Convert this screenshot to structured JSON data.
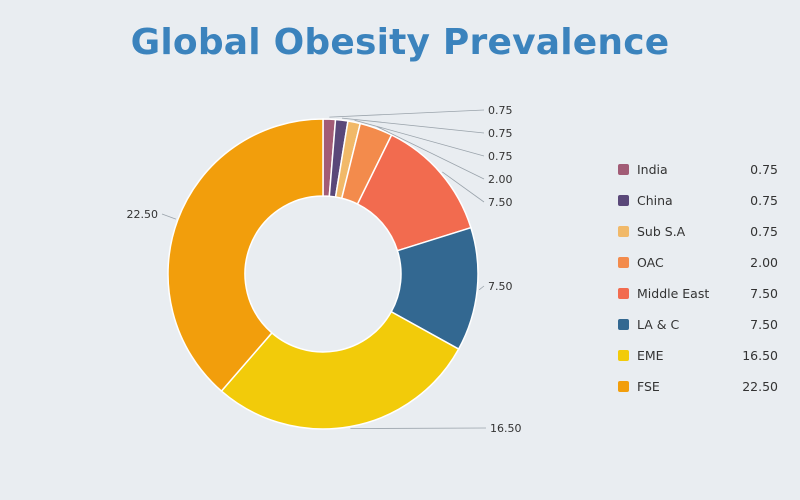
{
  "chart_data": {
    "type": "pie",
    "title": "Global Obesity Prevalence",
    "labels": [
      "India",
      "China",
      "Sub S.A",
      "OAC",
      "Middle East",
      "LA & C",
      "EME",
      "FSE"
    ],
    "values": [
      0.75,
      0.75,
      0.75,
      2.0,
      7.5,
      7.5,
      16.5,
      22.5
    ],
    "value_labels": [
      "0.75",
      "0.75",
      "0.75",
      "2.00",
      "7.50",
      "7.50",
      "16.50",
      "22.50"
    ],
    "colors": [
      "#a25c76",
      "#5a4879",
      "#f1b969",
      "#f38b4c",
      "#f26b4f",
      "#336891",
      "#f2cb0a",
      "#f29e0c"
    ],
    "donut": true,
    "legend": "right"
  }
}
